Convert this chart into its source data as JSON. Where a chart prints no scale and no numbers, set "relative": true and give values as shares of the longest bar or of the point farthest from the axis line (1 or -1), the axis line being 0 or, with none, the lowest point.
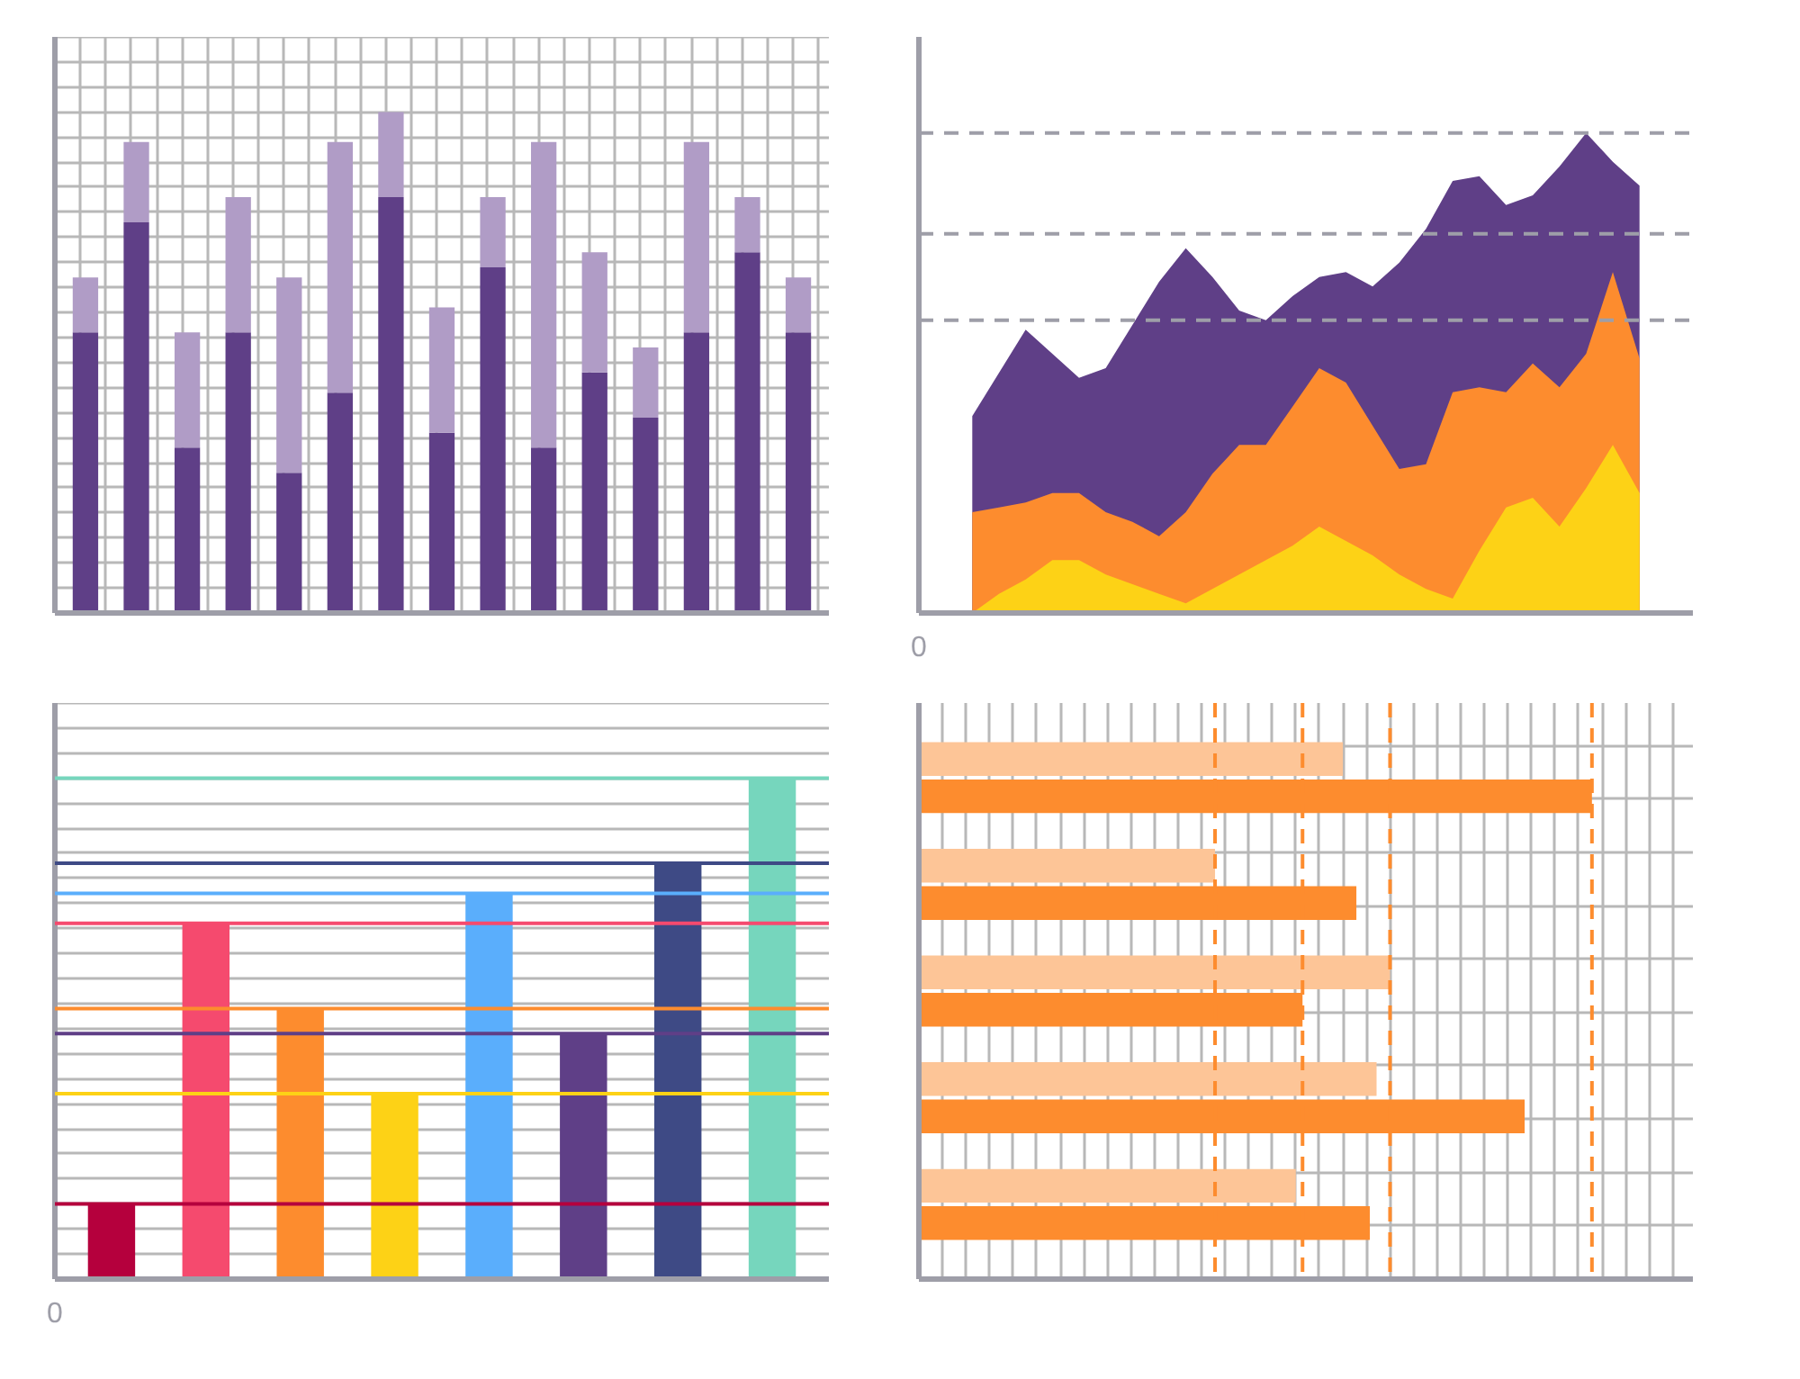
{
  "chart_data": [
    {
      "type": "bar",
      "stacked": true,
      "relative": true,
      "grid": true,
      "categories": [
        null,
        null,
        null,
        null,
        null,
        null,
        null,
        null,
        null,
        null,
        null,
        null,
        null,
        null,
        null
      ],
      "series": [
        {
          "color": "#5f3f87",
          "values": [
            0.56,
            0.78,
            0.33,
            0.56,
            0.28,
            0.44,
            0.83,
            0.36,
            0.69,
            0.33,
            0.48,
            0.39,
            0.56,
            0.72,
            0.56
          ]
        },
        {
          "color": "#b09cc6",
          "values": [
            0.11,
            0.16,
            0.23,
            0.27,
            0.39,
            0.5,
            0.17,
            0.25,
            0.14,
            0.61,
            0.24,
            0.14,
            0.38,
            0.11,
            0.11
          ]
        }
      ]
    },
    {
      "type": "area",
      "relative": true,
      "annotations": [
        "0"
      ],
      "categories": [
        null,
        null,
        null,
        null,
        null,
        null,
        null,
        null,
        null,
        null,
        null,
        null,
        null,
        null,
        null,
        null,
        null,
        null,
        null,
        null,
        null,
        null,
        null,
        null,
        null,
        null
      ],
      "series": [
        {
          "color": "#5f3f87",
          "values": [
            0.41,
            0.5,
            0.59,
            0.54,
            0.49,
            0.51,
            0.6,
            0.69,
            0.76,
            0.7,
            0.63,
            0.61,
            0.66,
            0.7,
            0.71,
            0.68,
            0.73,
            0.8,
            0.9,
            0.91,
            0.85,
            0.87,
            0.93,
            1.0,
            0.94,
            0.89
          ]
        },
        {
          "color": "#fd8c2e",
          "values": [
            0.21,
            0.22,
            0.23,
            0.25,
            0.25,
            0.21,
            0.19,
            0.16,
            0.21,
            0.29,
            0.35,
            0.35,
            0.43,
            0.51,
            0.48,
            0.39,
            0.3,
            0.31,
            0.46,
            0.47,
            0.46,
            0.52,
            0.47,
            0.54,
            0.71,
            0.53
          ]
        },
        {
          "color": "#fdd216",
          "values": [
            0,
            0.04,
            0.07,
            0.11,
            0.11,
            0.08,
            0.06,
            0.04,
            0.02,
            0.05,
            0.08,
            0.11,
            0.14,
            0.18,
            0.15,
            0.12,
            0.08,
            0.05,
            0.03,
            0.13,
            0.22,
            0.24,
            0.18,
            0.26,
            0.35,
            0.25
          ]
        }
      ],
      "ref_lines": [
        {
          "axis": "y",
          "value": 1.0,
          "color": "#9e9ea8",
          "line_style": "dashed"
        },
        {
          "axis": "y",
          "value": 0.79,
          "color": "#9e9ea8",
          "line_style": "dashed"
        },
        {
          "axis": "y",
          "value": 0.61,
          "color": "#9e9ea8",
          "line_style": "dashed"
        }
      ]
    },
    {
      "type": "bar",
      "relative": true,
      "grid": "y",
      "annotations": [
        "0"
      ],
      "categories": [
        null,
        null,
        null,
        null,
        null,
        null,
        null,
        null
      ],
      "values": [
        0.15,
        0.71,
        0.54,
        0.37,
        0.77,
        0.49,
        0.83,
        1.0
      ],
      "colors": [
        "#b5003d",
        "#f54a6e",
        "#fd8c2e",
        "#fdd216",
        "#5aaefc",
        "#5f3f87",
        "#3e4a85",
        "#76d6bd"
      ],
      "ref_lines": [
        {
          "axis": "y",
          "value": 0.15,
          "color": "#b5003d"
        },
        {
          "axis": "y",
          "value": 0.71,
          "color": "#f54a6e"
        },
        {
          "axis": "y",
          "value": 0.54,
          "color": "#fd8c2e"
        },
        {
          "axis": "y",
          "value": 0.37,
          "color": "#fdd216"
        },
        {
          "axis": "y",
          "value": 0.77,
          "color": "#5aaefc"
        },
        {
          "axis": "y",
          "value": 0.49,
          "color": "#5f3f87"
        },
        {
          "axis": "y",
          "value": 0.83,
          "color": "#3e4a85"
        },
        {
          "axis": "y",
          "value": 1.0,
          "color": "#76d6bd"
        }
      ]
    },
    {
      "type": "bar",
      "orientation": "horizontal",
      "relative": true,
      "grid": true,
      "categories": [
        null,
        null,
        null,
        null,
        null
      ],
      "series": [
        {
          "color": "#fdc597",
          "values": [
            0.63,
            0.44,
            0.7,
            0.68,
            0.56
          ]
        },
        {
          "color": "#fd8c2e",
          "values": [
            1.0,
            0.65,
            0.57,
            0.9,
            0.67
          ]
        }
      ],
      "ref_lines": [
        {
          "axis": "x",
          "value": 0.44,
          "color": "#fd8c2e",
          "line_style": "dashed"
        },
        {
          "axis": "x",
          "value": 0.57,
          "color": "#fd8c2e",
          "line_style": "dashed"
        },
        {
          "axis": "x",
          "value": 0.7,
          "color": "#fd8c2e",
          "line_style": "dashed"
        },
        {
          "axis": "x",
          "value": 1.0,
          "color": "#fd8c2e",
          "line_style": "dashed"
        }
      ]
    }
  ]
}
